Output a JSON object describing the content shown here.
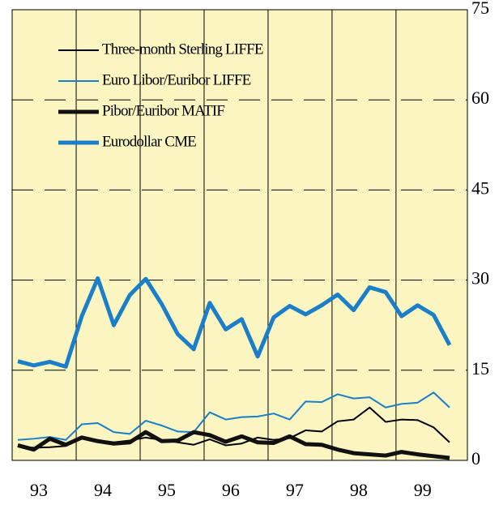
{
  "chart_data": {
    "type": "line",
    "categories": [
      "93",
      null,
      null,
      null,
      "94",
      null,
      null,
      null,
      "95",
      null,
      null,
      null,
      "96",
      null,
      null,
      null,
      "97",
      null,
      null,
      null,
      "98",
      null,
      null,
      null,
      "99",
      null,
      null,
      null
    ],
    "series": [
      {
        "name": "Three-month Sterling LIFFE",
        "color": "#000000",
        "width": 2,
        "values": [
          2.3,
          2.1,
          2.2,
          2.4,
          3.7,
          3.3,
          3.0,
          3.3,
          3.8,
          3.4,
          3.0,
          2.6,
          3.5,
          2.5,
          2.8,
          3.8,
          3.4,
          3.7,
          5.0,
          4.8,
          6.5,
          6.8,
          8.8,
          6.4,
          6.8,
          6.7,
          5.5,
          3.0
        ]
      },
      {
        "name": "Euro Libor/Euribor LIFFE",
        "color": "#1a7fc8",
        "width": 2,
        "values": [
          3.4,
          3.6,
          3.9,
          3.4,
          6.0,
          6.2,
          4.7,
          4.4,
          6.6,
          5.8,
          4.8,
          4.7,
          8.0,
          6.8,
          7.2,
          7.3,
          7.8,
          6.8,
          9.8,
          9.7,
          11.0,
          10.3,
          10.5,
          8.8,
          9.4,
          9.6,
          11.3,
          8.8
        ]
      },
      {
        "name": "Pibor/Euribor MATIF",
        "color": "#111111",
        "width": 5,
        "values": [
          2.5,
          1.8,
          3.6,
          2.6,
          3.8,
          3.2,
          2.8,
          3.0,
          4.7,
          3.2,
          3.3,
          4.7,
          4.2,
          3.1,
          4.0,
          3.0,
          2.9,
          4.0,
          2.7,
          2.6,
          1.8,
          1.2,
          1.0,
          0.8,
          1.4,
          1.0,
          0.7,
          0.4
        ]
      },
      {
        "name": "Eurodollar CME",
        "color": "#1a7fc8",
        "width": 5,
        "values": [
          16.5,
          15.8,
          16.4,
          15.6,
          24.0,
          30.3,
          22.5,
          27.5,
          30.2,
          26.0,
          21.0,
          18.5,
          26.2,
          21.8,
          23.5,
          17.3,
          23.8,
          25.7,
          24.3,
          25.8,
          27.6,
          25.0,
          28.8,
          28.0,
          24.0,
          25.8,
          24.2,
          19.2
        ]
      }
    ],
    "ylim": [
      0,
      75
    ],
    "yticks": [
      0,
      15,
      30,
      45,
      60,
      75
    ],
    "grid": true,
    "background": "#fbf5c1"
  }
}
